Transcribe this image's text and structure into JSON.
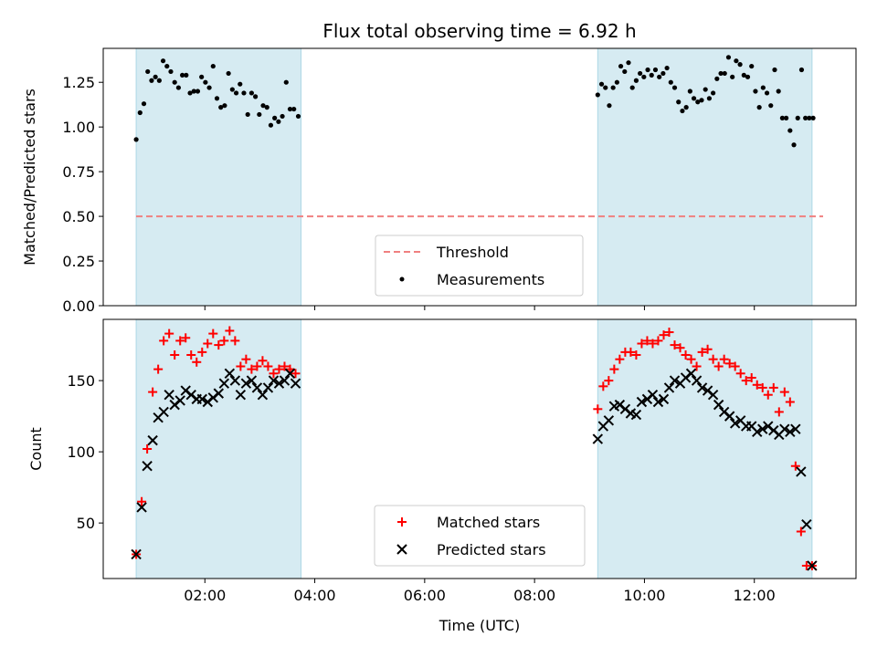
{
  "chart_data": [
    {
      "type": "scatter",
      "title": "Flux total observing time = 6.92 h",
      "xlabel": "",
      "ylabel": "Matched/Predicted stars",
      "xlim": [
        0.15,
        13.85
      ],
      "ylim": [
        0.0,
        1.44
      ],
      "yticks": [
        0.0,
        0.25,
        0.5,
        0.75,
        1.0,
        1.25
      ],
      "ytick_labels": [
        "0.00",
        "0.25",
        "0.50",
        "0.75",
        "1.00",
        "1.25"
      ],
      "xticks": [
        2,
        4,
        6,
        8,
        10,
        12
      ],
      "grid": false,
      "legend_position": "lower-center",
      "shaded_intervals": [
        [
          0.75,
          3.75
        ],
        [
          9.15,
          13.05
        ]
      ],
      "threshold": {
        "name": "Threshold",
        "value": 0.5,
        "color": "#f08080"
      },
      "series": [
        {
          "name": "Measurements",
          "color": "#000000",
          "marker": "dot",
          "x": [
            0.75,
            0.82,
            0.89,
            0.96,
            1.03,
            1.1,
            1.17,
            1.24,
            1.31,
            1.38,
            1.45,
            1.52,
            1.59,
            1.66,
            1.73,
            1.8,
            1.87,
            1.94,
            2.01,
            2.08,
            2.15,
            2.22,
            2.29,
            2.36,
            2.43,
            2.5,
            2.57,
            2.64,
            2.71,
            2.78,
            2.85,
            2.92,
            2.99,
            3.06,
            3.13,
            3.2,
            3.27,
            3.34,
            3.41,
            3.48,
            3.55,
            3.62,
            3.7,
            9.15,
            9.22,
            9.29,
            9.36,
            9.43,
            9.5,
            9.57,
            9.64,
            9.71,
            9.78,
            9.85,
            9.92,
            9.99,
            10.06,
            10.13,
            10.2,
            10.27,
            10.34,
            10.41,
            10.48,
            10.55,
            10.62,
            10.69,
            10.76,
            10.83,
            10.9,
            10.97,
            11.04,
            11.11,
            11.18,
            11.25,
            11.32,
            11.39,
            11.46,
            11.53,
            11.6,
            11.67,
            11.74,
            11.81,
            11.88,
            11.95,
            12.02,
            12.09,
            12.16,
            12.23,
            12.3,
            12.37,
            12.44,
            12.51,
            12.58,
            12.65,
            12.72,
            12.79,
            12.86,
            12.93,
            13.0,
            13.07
          ],
          "y": [
            0.93,
            1.08,
            1.13,
            1.31,
            1.26,
            1.28,
            1.26,
            1.37,
            1.34,
            1.31,
            1.25,
            1.22,
            1.29,
            1.29,
            1.19,
            1.2,
            1.2,
            1.28,
            1.25,
            1.22,
            1.34,
            1.16,
            1.11,
            1.12,
            1.3,
            1.21,
            1.19,
            1.24,
            1.19,
            1.07,
            1.19,
            1.17,
            1.07,
            1.12,
            1.11,
            1.01,
            1.05,
            1.03,
            1.06,
            1.25,
            1.1,
            1.1,
            1.06,
            1.18,
            1.24,
            1.22,
            1.12,
            1.22,
            1.25,
            1.34,
            1.31,
            1.36,
            1.22,
            1.26,
            1.3,
            1.28,
            1.32,
            1.29,
            1.32,
            1.28,
            1.3,
            1.33,
            1.25,
            1.22,
            1.14,
            1.09,
            1.11,
            1.2,
            1.16,
            1.14,
            1.15,
            1.21,
            1.16,
            1.19,
            1.27,
            1.3,
            1.3,
            1.39,
            1.28,
            1.37,
            1.35,
            1.29,
            1.28,
            1.34,
            1.2,
            1.11,
            1.22,
            1.19,
            1.12,
            1.32,
            1.2,
            1.05,
            1.05,
            0.98,
            0.9,
            1.05,
            1.32,
            1.05,
            1.05,
            1.05
          ]
        }
      ]
    },
    {
      "type": "scatter",
      "title": "",
      "xlabel": "Time (UTC)",
      "ylabel": "Count",
      "xlim": [
        0.15,
        13.85
      ],
      "ylim": [
        11,
        193
      ],
      "yticks": [
        50,
        100,
        150
      ],
      "ytick_labels": [
        "50",
        "100",
        "150"
      ],
      "xticks": [
        2,
        4,
        6,
        8,
        10,
        12
      ],
      "xtick_labels": [
        "02:00",
        "04:00",
        "06:00",
        "08:00",
        "10:00",
        "12:00"
      ],
      "grid": false,
      "legend_position": "lower-center",
      "shaded_intervals": [
        [
          0.75,
          3.75
        ],
        [
          9.15,
          13.05
        ]
      ],
      "series": [
        {
          "name": "Matched stars",
          "color": "#ff0000",
          "marker": "plus",
          "x": [
            0.75,
            0.85,
            0.95,
            1.05,
            1.15,
            1.25,
            1.35,
            1.45,
            1.55,
            1.65,
            1.75,
            1.85,
            1.95,
            2.05,
            2.15,
            2.25,
            2.35,
            2.45,
            2.55,
            2.65,
            2.75,
            2.85,
            2.95,
            3.05,
            3.15,
            3.25,
            3.35,
            3.45,
            3.55,
            3.65,
            9.15,
            9.25,
            9.35,
            9.45,
            9.55,
            9.65,
            9.75,
            9.85,
            9.95,
            10.05,
            10.15,
            10.25,
            10.35,
            10.45,
            10.55,
            10.65,
            10.75,
            10.85,
            10.95,
            11.05,
            11.15,
            11.25,
            11.35,
            11.45,
            11.55,
            11.65,
            11.75,
            11.85,
            11.95,
            12.05,
            12.15,
            12.25,
            12.35,
            12.45,
            12.55,
            12.65,
            12.75,
            12.85,
            12.95,
            13.05
          ],
          "y": [
            28,
            65,
            102,
            142,
            158,
            178,
            183,
            168,
            178,
            180,
            168,
            163,
            170,
            176,
            183,
            175,
            178,
            185,
            178,
            160,
            165,
            158,
            160,
            164,
            160,
            155,
            158,
            160,
            158,
            155,
            130,
            146,
            150,
            158,
            165,
            170,
            170,
            168,
            176,
            178,
            176,
            178,
            182,
            184,
            175,
            173,
            168,
            165,
            160,
            170,
            172,
            165,
            160,
            165,
            162,
            160,
            155,
            150,
            152,
            147,
            145,
            140,
            145,
            128,
            142,
            135,
            90,
            44,
            20,
            20
          ]
        },
        {
          "name": "Predicted stars",
          "color": "#000000",
          "marker": "x",
          "x": [
            0.75,
            0.85,
            0.95,
            1.05,
            1.15,
            1.25,
            1.35,
            1.45,
            1.55,
            1.65,
            1.75,
            1.85,
            1.95,
            2.05,
            2.15,
            2.25,
            2.35,
            2.45,
            2.55,
            2.65,
            2.75,
            2.85,
            2.95,
            3.05,
            3.15,
            3.25,
            3.35,
            3.45,
            3.55,
            3.65,
            9.15,
            9.25,
            9.35,
            9.45,
            9.55,
            9.65,
            9.75,
            9.85,
            9.95,
            10.05,
            10.15,
            10.25,
            10.35,
            10.45,
            10.55,
            10.65,
            10.75,
            10.85,
            10.95,
            11.05,
            11.15,
            11.25,
            11.35,
            11.45,
            11.55,
            11.65,
            11.75,
            11.85,
            11.95,
            12.05,
            12.15,
            12.25,
            12.35,
            12.45,
            12.55,
            12.65,
            12.75,
            12.85,
            12.95,
            13.05
          ],
          "y": [
            28,
            61,
            90,
            108,
            124,
            128,
            140,
            133,
            136,
            143,
            140,
            137,
            137,
            135,
            138,
            141,
            148,
            155,
            150,
            140,
            148,
            150,
            145,
            140,
            145,
            150,
            148,
            150,
            155,
            148,
            109,
            118,
            122,
            132,
            133,
            130,
            127,
            126,
            135,
            137,
            140,
            135,
            137,
            145,
            150,
            148,
            152,
            155,
            150,
            145,
            143,
            140,
            133,
            128,
            125,
            120,
            122,
            118,
            118,
            114,
            116,
            118,
            115,
            112,
            116,
            114,
            116,
            86,
            49,
            20
          ]
        }
      ]
    }
  ]
}
